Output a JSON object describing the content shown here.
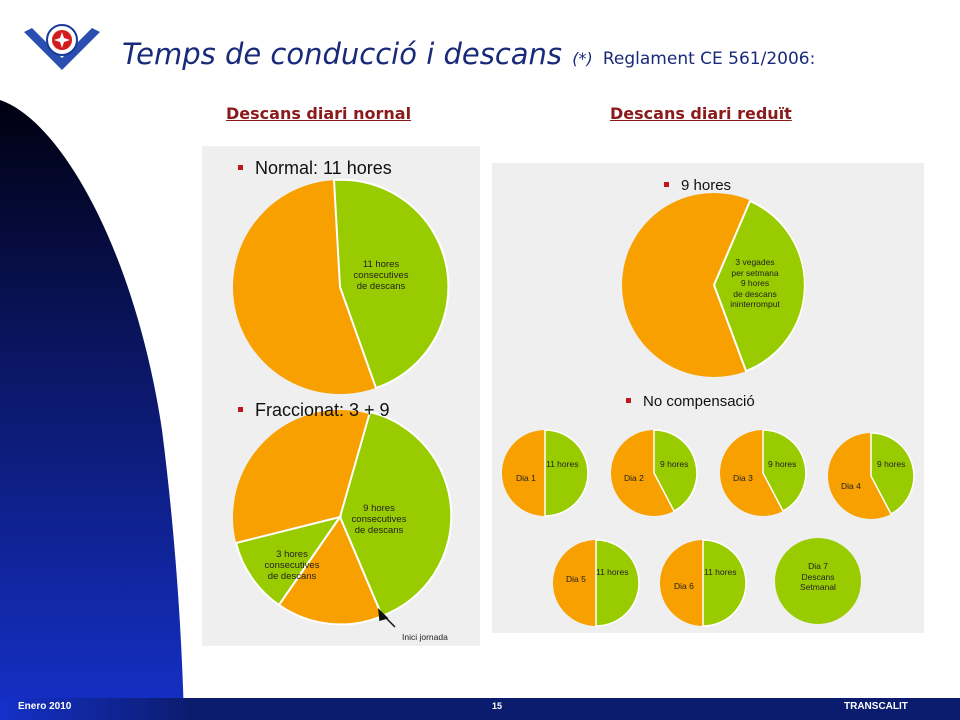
{
  "header": {
    "title": "Temps de conducció i descans",
    "title_note": "(*)",
    "regulation": "Reglament CE 561/2006:"
  },
  "columns": {
    "normal_heading": "Descans diari nornal",
    "reduced_heading": "Descans diari reduït"
  },
  "normal_panel": {
    "section1_label": "Normal: 11 hores",
    "slice1_text": "11 hores\nconsecutives\nde descans",
    "section2_label": "Fraccionat: 3 + 9",
    "slice_9h_text": "9 hores\nconsecutives\nde descans",
    "slice_3h_text": "3 hores\nconsecutives\nde descans",
    "start_note": "Inici jornada"
  },
  "reduced_panel": {
    "section1_label": "9 hores",
    "slice_text": "3 vegades\nper setmana\n9 hores\nde descans\nininterromput",
    "section2_label": "No compensació",
    "days": [
      {
        "day": "Dia 1",
        "rest": "11 hores"
      },
      {
        "day": "Dia 2",
        "rest": "9 hores"
      },
      {
        "day": "Dia 3",
        "rest": "9 hores"
      },
      {
        "day": "Dia 4",
        "rest": "9 hores"
      },
      {
        "day": "Dia 5",
        "rest": "11 hores"
      },
      {
        "day": "Dia 6",
        "rest": "11 hores"
      }
    ],
    "weekly": "Dia 7\nDescans\nSetmanal"
  },
  "footer": {
    "date": "Enero 2010",
    "page": "15",
    "company": "TRANSCALIT"
  },
  "colors": {
    "orange": "#f7a000",
    "green": "#99cc00",
    "title_blue": "#1a2a7a",
    "heading_red": "#8b1a1a",
    "footer_navy": "#0b1c6e"
  }
}
